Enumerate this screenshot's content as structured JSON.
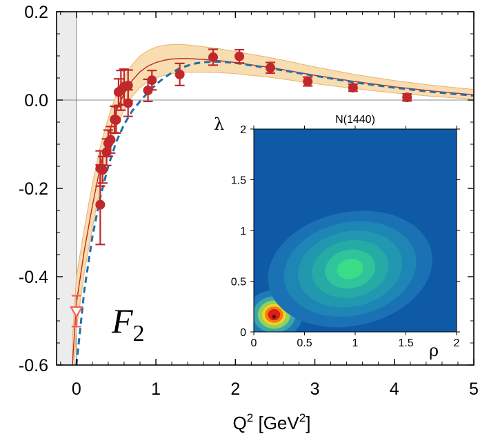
{
  "chart_data": [
    {
      "type": "scatter",
      "xlabel": "Q",
      "xlabel_sup": "2",
      "xlabel_unit_open": " [GeV",
      "xlabel_unit_sup": "2",
      "xlabel_unit_close": "]",
      "ylabel": "",
      "panel_label": "F",
      "panel_label_sub": "2",
      "xlim": [
        -0.25,
        5
      ],
      "ylim": [
        -0.6,
        0.2
      ],
      "xticks": [
        0,
        1,
        2,
        3,
        4,
        5
      ],
      "xtick_labels": [
        "0",
        "1",
        "2",
        "3",
        "4",
        "5"
      ],
      "yticks": [
        0.2,
        0.0,
        -0.2,
        -0.4,
        -0.6
      ],
      "ytick_labels": [
        "0.2",
        "0.0",
        "-0.2",
        "-0.4",
        "-0.6"
      ],
      "shaded_region_x": [
        -0.25,
        0
      ],
      "series": [
        {
          "name": "data",
          "kind": "points_with_errors",
          "color": "#c0282b",
          "points": [
            {
              "x": 0.3,
              "y": -0.237,
              "err": 0.09
            },
            {
              "x": 0.3,
              "y": -0.155,
              "err": 0.04
            },
            {
              "x": 0.33,
              "y": -0.158,
              "err": 0.03
            },
            {
              "x": 0.38,
              "y": -0.118,
              "err": 0.03
            },
            {
              "x": 0.4,
              "y": -0.098,
              "err": 0.03
            },
            {
              "x": 0.43,
              "y": -0.09,
              "err": 0.03
            },
            {
              "x": 0.48,
              "y": -0.044,
              "err": 0.03
            },
            {
              "x": 0.5,
              "y": -0.045,
              "err": 0.03
            },
            {
              "x": 0.53,
              "y": 0.018,
              "err": 0.03
            },
            {
              "x": 0.56,
              "y": 0.022,
              "err": 0.045
            },
            {
              "x": 0.6,
              "y": 0.03,
              "err": 0.04
            },
            {
              "x": 0.65,
              "y": 0.033,
              "err": 0.035
            },
            {
              "x": 0.65,
              "y": -0.007,
              "err": 0.03
            },
            {
              "x": 0.9,
              "y": 0.022,
              "err": 0.025
            },
            {
              "x": 0.95,
              "y": 0.045,
              "err": 0.022
            },
            {
              "x": 1.3,
              "y": 0.058,
              "err": 0.025
            },
            {
              "x": 1.72,
              "y": 0.097,
              "err": 0.018
            },
            {
              "x": 2.05,
              "y": 0.099,
              "err": 0.015
            },
            {
              "x": 2.44,
              "y": 0.073,
              "err": 0.012
            },
            {
              "x": 2.91,
              "y": 0.042,
              "err": 0.01
            },
            {
              "x": 3.48,
              "y": 0.028,
              "err": 0.008
            },
            {
              "x": 4.16,
              "y": 0.006,
              "err": 0.008
            }
          ]
        },
        {
          "name": "photon point",
          "kind": "open_triangle",
          "color": "#f0605a",
          "points": [
            {
              "x": 0.0,
              "y": -0.478,
              "err": 0.035
            }
          ]
        },
        {
          "name": "central curve",
          "kind": "line",
          "color": "#c0282b",
          "x": [
            -0.05,
            0.0,
            0.1,
            0.2,
            0.3,
            0.4,
            0.5,
            0.6,
            0.7,
            0.8,
            0.9,
            1.0,
            1.1,
            1.2,
            1.3,
            1.4,
            1.5,
            1.6,
            1.8,
            2.0,
            2.5,
            3.0,
            3.5,
            4.0,
            4.5,
            5.0
          ],
          "y": [
            -0.6,
            -0.46,
            -0.34,
            -0.24,
            -0.15,
            -0.08,
            -0.025,
            0.015,
            0.044,
            0.064,
            0.077,
            0.085,
            0.09,
            0.093,
            0.094,
            0.094,
            0.093,
            0.092,
            0.089,
            0.085,
            0.072,
            0.056,
            0.042,
            0.03,
            0.02,
            0.012
          ]
        },
        {
          "name": "uncertainty band",
          "kind": "band",
          "color": "#f7ddb0",
          "x": [
            -0.05,
            0.0,
            0.1,
            0.2,
            0.3,
            0.4,
            0.5,
            0.6,
            0.7,
            0.8,
            0.9,
            1.0,
            1.1,
            1.2,
            1.3,
            1.4,
            1.5,
            1.6,
            1.8,
            2.0,
            2.5,
            3.0,
            3.5,
            4.0,
            4.5,
            5.0
          ],
          "upper": [
            -0.54,
            -0.4,
            -0.29,
            -0.19,
            -0.105,
            -0.04,
            0.012,
            0.052,
            0.08,
            0.1,
            0.112,
            0.12,
            0.124,
            0.126,
            0.126,
            0.125,
            0.123,
            0.121,
            0.116,
            0.11,
            0.094,
            0.075,
            0.058,
            0.044,
            0.033,
            0.024
          ],
          "lower": [
            -0.66,
            -0.52,
            -0.39,
            -0.29,
            -0.195,
            -0.12,
            -0.062,
            -0.022,
            0.008,
            0.028,
            0.042,
            0.05,
            0.056,
            0.06,
            0.062,
            0.063,
            0.063,
            0.063,
            0.062,
            0.06,
            0.05,
            0.037,
            0.026,
            0.016,
            0.008,
            0.002
          ]
        },
        {
          "name": "dashed curve",
          "kind": "dashed_line",
          "color": "#1f6fa8",
          "x": [
            0.0,
            0.1,
            0.2,
            0.3,
            0.4,
            0.5,
            0.6,
            0.7,
            0.8,
            0.9,
            1.0,
            1.1,
            1.2,
            1.3,
            1.4,
            1.5,
            1.6,
            1.8,
            2.0,
            2.5,
            3.0,
            3.5,
            4.0,
            4.5,
            5.0
          ],
          "y": [
            -0.6,
            -0.43,
            -0.31,
            -0.22,
            -0.15,
            -0.095,
            -0.055,
            -0.025,
            -0.003,
            0.017,
            0.035,
            0.05,
            0.062,
            0.072,
            0.078,
            0.083,
            0.086,
            0.087,
            0.084,
            0.07,
            0.055,
            0.04,
            0.028,
            0.018,
            0.01
          ]
        }
      ]
    },
    {
      "type": "heatmap",
      "title": "N(1440)",
      "xlabel": "ρ",
      "ylabel": "λ",
      "xlim": [
        0,
        2
      ],
      "ylim": [
        0,
        2
      ],
      "xticks": [
        0,
        0.5,
        1,
        1.5,
        2
      ],
      "xtick_labels": [
        "0",
        "0.5",
        "1",
        "1.5",
        "2"
      ],
      "yticks": [
        0,
        0.5,
        1,
        1.5,
        2
      ],
      "ytick_labels": [
        "0",
        "0.5",
        "1",
        "1.5",
        "2"
      ],
      "background_color": "#0f5aa6",
      "peaks": [
        {
          "center": [
            0.2,
            0.17
          ],
          "levels": [
            {
              "rx": 0.28,
              "ry": 0.24,
              "color": "#1e7bb8"
            },
            {
              "rx": 0.21,
              "ry": 0.18,
              "color": "#3aa7a8"
            },
            {
              "rx": 0.16,
              "ry": 0.14,
              "color": "#8fd060"
            },
            {
              "rx": 0.12,
              "ry": 0.105,
              "color": "#f2d21e"
            },
            {
              "rx": 0.09,
              "ry": 0.08,
              "color": "#ef7a18"
            },
            {
              "rx": 0.06,
              "ry": 0.055,
              "color": "#dc1e14"
            }
          ]
        },
        {
          "center": [
            0.95,
            0.62
          ],
          "levels": [
            {
              "rx": 0.82,
              "ry": 0.56,
              "color": "#1a72b4"
            },
            {
              "rx": 0.66,
              "ry": 0.46,
              "color": "#1d86b5"
            },
            {
              "rx": 0.52,
              "ry": 0.37,
              "color": "#2198b0"
            },
            {
              "rx": 0.38,
              "ry": 0.28,
              "color": "#26aaa6"
            },
            {
              "rx": 0.25,
              "ry": 0.19,
              "color": "#30c49a"
            },
            {
              "rx": 0.13,
              "ry": 0.1,
              "color": "#3bdc88"
            }
          ]
        }
      ]
    }
  ]
}
